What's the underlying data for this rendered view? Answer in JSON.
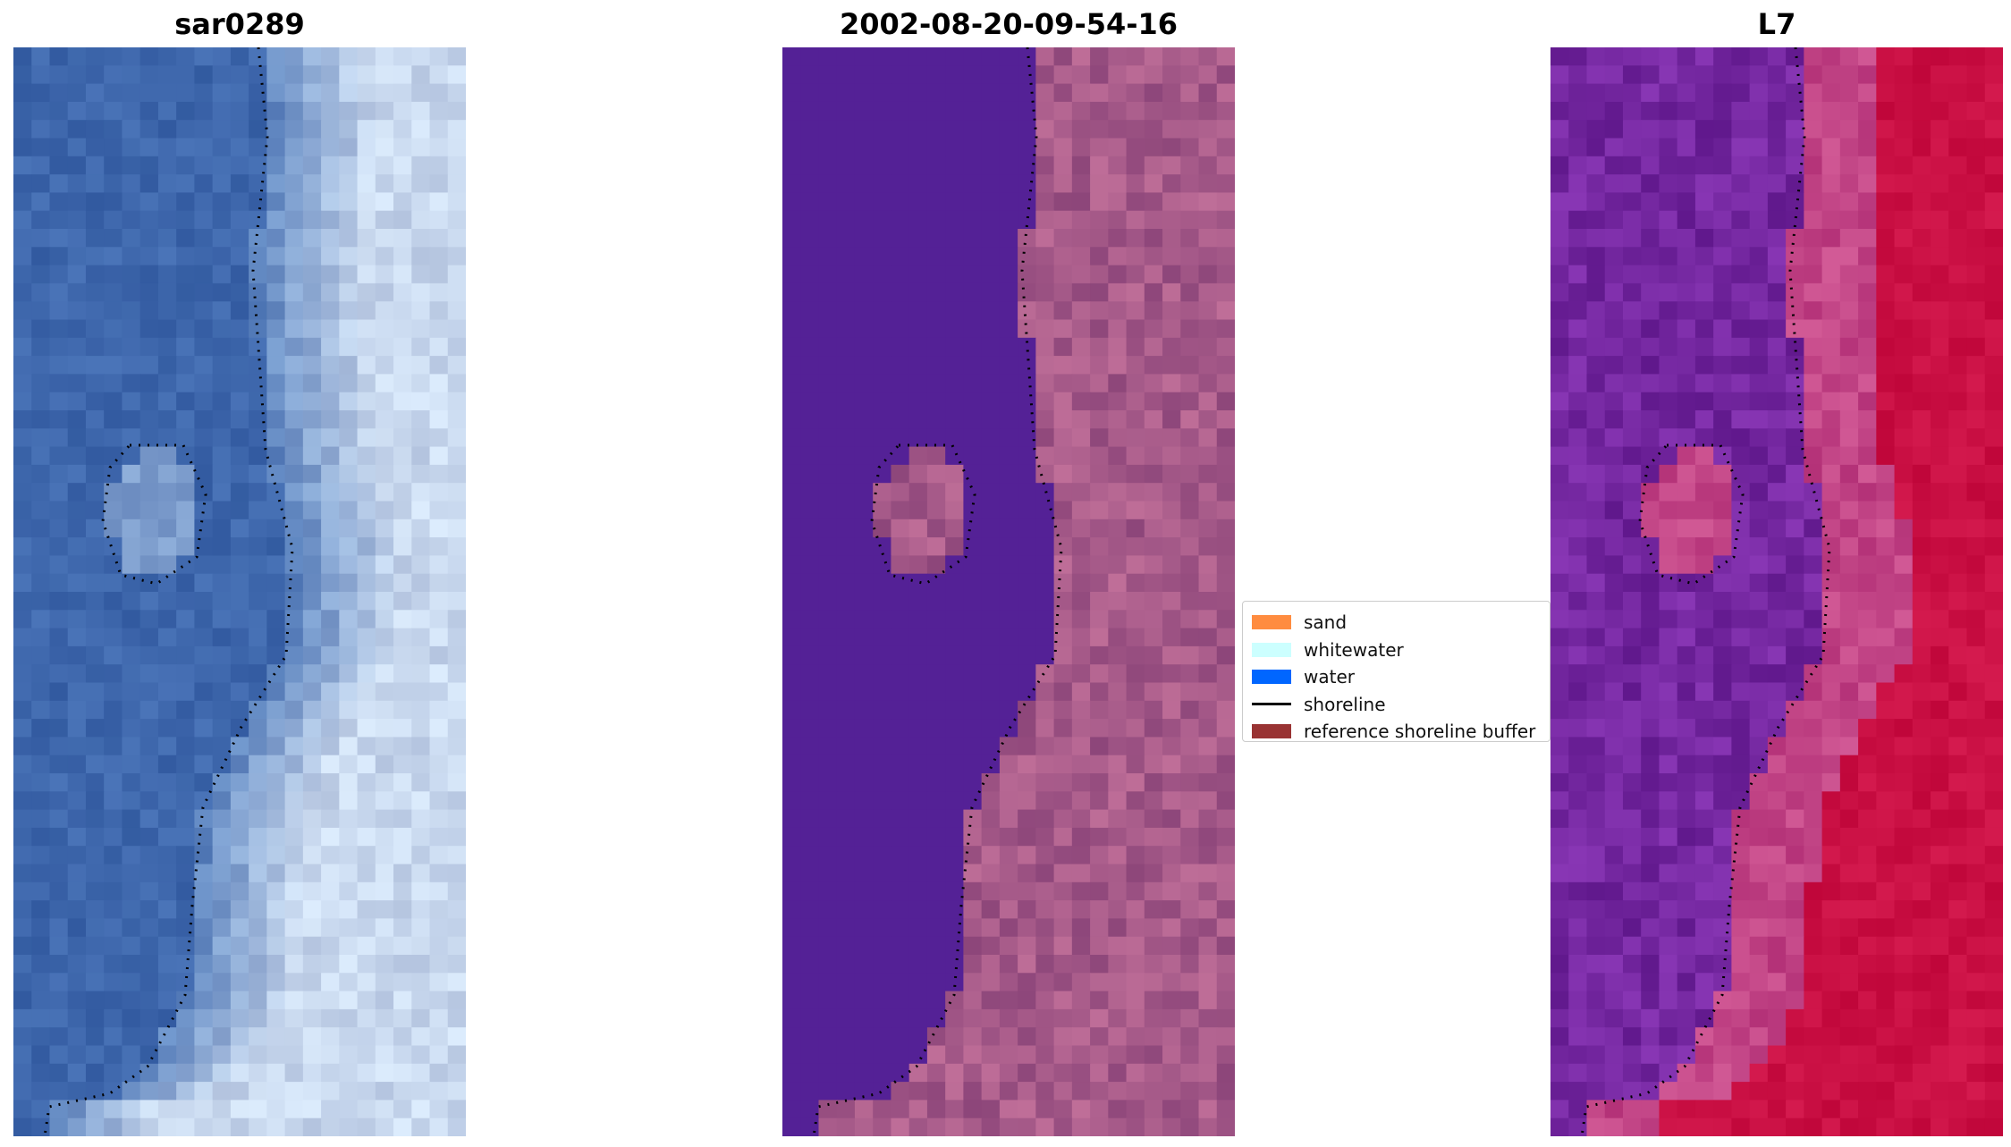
{
  "panels": [
    {
      "title": "sar0289",
      "kind": "rgb"
    },
    {
      "title": "2002-08-20-09-54-16",
      "kind": "classified"
    },
    {
      "title": "L7",
      "kind": "index"
    }
  ],
  "legend": {
    "items": [
      {
        "label": "sand",
        "color": "#ff8c40",
        "type": "patch"
      },
      {
        "label": "whitewater",
        "color": "#ccffff",
        "type": "patch"
      },
      {
        "label": "water",
        "color": "#0066ff",
        "type": "patch"
      },
      {
        "label": "shoreline",
        "color": "#000000",
        "type": "line"
      },
      {
        "label": "reference shoreline buffer",
        "color": "#993333",
        "type": "patch"
      }
    ]
  },
  "colors": {
    "water_rgb": "#3a62a8",
    "surf_rgb": "#c8d8ee",
    "classified_water": "#542196",
    "classified_land": "#b0648e",
    "index_water": "#6a18a0",
    "index_land": "#c0063a",
    "shoreline": "#000000"
  }
}
